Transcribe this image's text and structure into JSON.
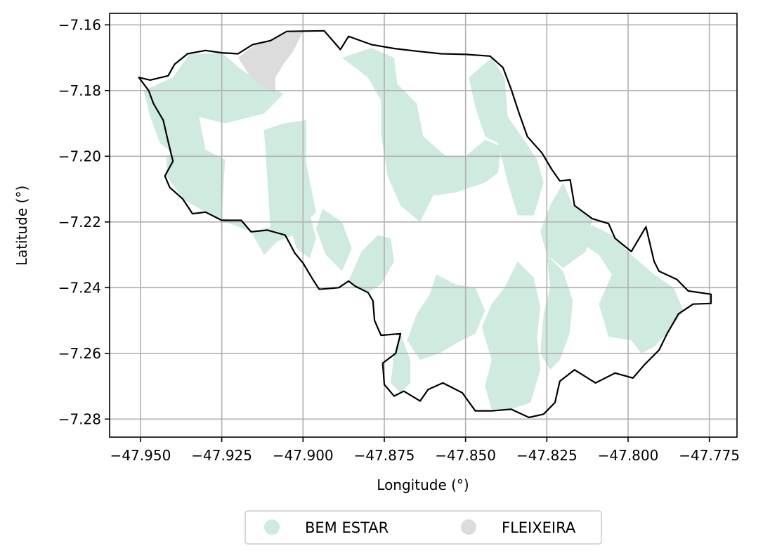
{
  "chart_data": {
    "type": "map",
    "title": "",
    "xlabel": "Longitude (°)",
    "ylabel": "Latitude (°)",
    "xlim": [
      -47.9595,
      -47.7665
    ],
    "ylim": [
      -7.2855,
      -7.1565
    ],
    "x_ticks": [
      -47.95,
      -47.925,
      -47.9,
      -47.875,
      -47.85,
      -47.825,
      -47.8,
      -47.775
    ],
    "y_ticks": [
      -7.16,
      -7.18,
      -7.2,
      -7.22,
      -7.24,
      -7.26,
      -7.28
    ],
    "x_tick_labels": [
      "−47.950",
      "−47.925",
      "−47.900",
      "−47.875",
      "−47.850",
      "−47.825",
      "−47.800",
      "−47.775"
    ],
    "y_tick_labels": [
      "−7.16",
      "−7.18",
      "−7.20",
      "−7.22",
      "−7.24",
      "−7.26",
      "−7.28"
    ],
    "grid": true,
    "legend_placement": "bottom-center",
    "colors": {
      "bem_estar": "#cfeadf",
      "fleixeira": "#dcdcdc",
      "boundary": "#000000",
      "grid": "#b0b0b0"
    },
    "legend": [
      {
        "label": "BEM ESTAR",
        "color": "#cfeadf"
      },
      {
        "label": "FLEIXEIRA",
        "color": "#dcdcdc"
      }
    ],
    "boundary": [
      [
        -47.9505,
        -7.176
      ],
      [
        -47.947,
        -7.1768
      ],
      [
        -47.9415,
        -7.1755
      ],
      [
        -47.9395,
        -7.172
      ],
      [
        -47.9355,
        -7.1688
      ],
      [
        -47.93,
        -7.1678
      ],
      [
        -47.925,
        -7.1685
      ],
      [
        -47.92,
        -7.1688
      ],
      [
        -47.9155,
        -7.166
      ],
      [
        -47.91,
        -7.1648
      ],
      [
        -47.905,
        -7.162
      ],
      [
        -47.8935,
        -7.1618
      ],
      [
        -47.8885,
        -7.1675
      ],
      [
        -47.886,
        -7.1635
      ],
      [
        -47.879,
        -7.166
      ],
      [
        -47.872,
        -7.1672
      ],
      [
        -47.865,
        -7.168
      ],
      [
        -47.8575,
        -7.1688
      ],
      [
        -47.85,
        -7.169
      ],
      [
        -47.8425,
        -7.1695
      ],
      [
        -47.8385,
        -7.173
      ],
      [
        -47.836,
        -7.1795
      ],
      [
        -47.8335,
        -7.187
      ],
      [
        -47.831,
        -7.194
      ],
      [
        -47.8265,
        -7.199
      ],
      [
        -47.8235,
        -7.204
      ],
      [
        -47.821,
        -7.2075
      ],
      [
        -47.8178,
        -7.2072
      ],
      [
        -47.8165,
        -7.215
      ],
      [
        -47.811,
        -7.219
      ],
      [
        -47.806,
        -7.2205
      ],
      [
        -47.804,
        -7.225
      ],
      [
        -47.799,
        -7.229
      ],
      [
        -47.7945,
        -7.2215
      ],
      [
        -47.792,
        -7.232
      ],
      [
        -47.7905,
        -7.235
      ],
      [
        -47.785,
        -7.2375
      ],
      [
        -47.7815,
        -7.241
      ],
      [
        -47.7745,
        -7.242
      ],
      [
        -47.7745,
        -7.2448
      ],
      [
        -47.78,
        -7.245
      ],
      [
        -47.7845,
        -7.248
      ],
      [
        -47.788,
        -7.254
      ],
      [
        -47.7905,
        -7.259
      ],
      [
        -47.795,
        -7.2635
      ],
      [
        -47.7985,
        -7.2675
      ],
      [
        -47.804,
        -7.266
      ],
      [
        -47.81,
        -7.269
      ],
      [
        -47.8165,
        -7.265
      ],
      [
        -47.821,
        -7.2685
      ],
      [
        -47.8225,
        -7.275
      ],
      [
        -47.826,
        -7.2785
      ],
      [
        -47.8305,
        -7.2795
      ],
      [
        -47.836,
        -7.277
      ],
      [
        -47.842,
        -7.2775
      ],
      [
        -47.847,
        -7.2775
      ],
      [
        -47.851,
        -7.272
      ],
      [
        -47.857,
        -7.269
      ],
      [
        -47.8615,
        -7.271
      ],
      [
        -47.864,
        -7.2745
      ],
      [
        -47.869,
        -7.2715
      ],
      [
        -47.872,
        -7.273
      ],
      [
        -47.875,
        -7.2695
      ],
      [
        -47.8755,
        -7.263
      ],
      [
        -47.8715,
        -7.26
      ],
      [
        -47.87,
        -7.254
      ],
      [
        -47.876,
        -7.2545
      ],
      [
        -47.878,
        -7.25
      ],
      [
        -47.8785,
        -7.244
      ],
      [
        -47.88,
        -7.2415
      ],
      [
        -47.884,
        -7.2395
      ],
      [
        -47.886,
        -7.238
      ],
      [
        -47.889,
        -7.24
      ],
      [
        -47.895,
        -7.2405
      ],
      [
        -47.897,
        -7.2375
      ],
      [
        -47.9,
        -7.2325
      ],
      [
        -47.9025,
        -7.2295
      ],
      [
        -47.9055,
        -7.224
      ],
      [
        -47.911,
        -7.2225
      ],
      [
        -47.916,
        -7.223
      ],
      [
        -47.919,
        -7.2195
      ],
      [
        -47.925,
        -7.2195
      ],
      [
        -47.93,
        -7.217
      ],
      [
        -47.934,
        -7.2175
      ],
      [
        -47.937,
        -7.213
      ],
      [
        -47.941,
        -7.2095
      ],
      [
        -47.9425,
        -7.206
      ],
      [
        -47.94,
        -7.2015
      ],
      [
        -47.9415,
        -7.1955
      ],
      [
        -47.943,
        -7.189
      ],
      [
        -47.946,
        -7.184
      ],
      [
        -47.9475,
        -7.18
      ],
      [
        -47.9505,
        -7.176
      ]
    ],
    "regions": [
      {
        "name": "BEM ESTAR",
        "polygons": [
          [
            [
              -47.949,
              -7.18
            ],
            [
              -47.94,
              -7.176
            ],
            [
              -47.935,
              -7.169
            ],
            [
              -47.925,
              -7.1685
            ],
            [
              -47.9185,
              -7.174
            ],
            [
              -47.91,
              -7.179
            ],
            [
              -47.906,
              -7.181
            ],
            [
              -47.912,
              -7.187
            ],
            [
              -47.924,
              -7.19
            ],
            [
              -47.932,
              -7.188
            ],
            [
              -47.94,
              -7.199
            ],
            [
              -47.944,
              -7.196
            ],
            [
              -47.947,
              -7.188
            ]
          ],
          [
            [
              -47.94,
              -7.199
            ],
            [
              -47.932,
              -7.188
            ],
            [
              -47.93,
              -7.198
            ],
            [
              -47.924,
              -7.201
            ],
            [
              -47.925,
              -7.219
            ],
            [
              -47.919,
              -7.2195
            ],
            [
              -47.916,
              -7.223
            ],
            [
              -47.91,
              -7.2215
            ],
            [
              -47.912,
              -7.192
            ],
            [
              -47.906,
              -7.19
            ],
            [
              -47.899,
              -7.189
            ],
            [
              -47.899,
              -7.202
            ],
            [
              -47.896,
              -7.217
            ],
            [
              -47.903,
              -7.224
            ],
            [
              -47.908,
              -7.226
            ],
            [
              -47.912,
              -7.23
            ],
            [
              -47.916,
              -7.223
            ],
            [
              -47.925,
              -7.2195
            ],
            [
              -47.93,
              -7.217
            ],
            [
              -47.937,
              -7.213
            ],
            [
              -47.942,
              -7.206
            ],
            [
              -47.942,
              -7.2
            ]
          ],
          [
            [
              -47.888,
              -7.17
            ],
            [
              -47.879,
              -7.167
            ],
            [
              -47.872,
              -7.17
            ],
            [
              -47.871,
              -7.178
            ],
            [
              -47.865,
              -7.184
            ],
            [
              -47.863,
              -7.194
            ],
            [
              -47.856,
              -7.2
            ],
            [
              -47.85,
              -7.2
            ],
            [
              -47.844,
              -7.195
            ],
            [
              -47.839,
              -7.197
            ],
            [
              -47.84,
              -7.205
            ],
            [
              -47.844,
              -7.208
            ],
            [
              -47.853,
              -7.211
            ],
            [
              -47.86,
              -7.212
            ],
            [
              -47.864,
              -7.22
            ],
            [
              -47.87,
              -7.215
            ],
            [
              -47.874,
              -7.206
            ],
            [
              -47.876,
              -7.193
            ],
            [
              -47.876,
              -7.183
            ],
            [
              -47.88,
              -7.176
            ]
          ],
          [
            [
              -47.842,
              -7.17
            ],
            [
              -47.838,
              -7.176
            ],
            [
              -47.837,
              -7.188
            ],
            [
              -47.832,
              -7.195
            ],
            [
              -47.828,
              -7.201
            ],
            [
              -47.826,
              -7.208
            ],
            [
              -47.829,
              -7.218
            ],
            [
              -47.834,
              -7.218
            ],
            [
              -47.837,
              -7.208
            ],
            [
              -47.84,
              -7.196
            ],
            [
              -47.844,
              -7.194
            ],
            [
              -47.847,
              -7.185
            ],
            [
              -47.849,
              -7.176
            ]
          ],
          [
            [
              -47.82,
              -7.208
            ],
            [
              -47.817,
              -7.215
            ],
            [
              -47.811,
              -7.219
            ],
            [
              -47.813,
              -7.229
            ],
            [
              -47.82,
              -7.234
            ],
            [
              -47.825,
              -7.23
            ],
            [
              -47.827,
              -7.223
            ],
            [
              -47.824,
              -7.215
            ]
          ],
          [
            [
              -47.815,
              -7.226
            ],
            [
              -47.809,
              -7.23
            ],
            [
              -47.805,
              -7.236
            ],
            [
              -47.809,
              -7.245
            ],
            [
              -47.806,
              -7.255
            ],
            [
              -47.799,
              -7.256
            ],
            [
              -47.796,
              -7.26
            ],
            [
              -47.792,
              -7.258
            ],
            [
              -47.788,
              -7.254
            ],
            [
              -47.783,
              -7.247
            ],
            [
              -47.786,
              -7.24
            ],
            [
              -47.792,
              -7.236
            ],
            [
              -47.799,
              -7.23
            ],
            [
              -47.805,
              -7.224
            ],
            [
              -47.811,
              -7.221
            ]
          ],
          [
            [
              -47.834,
              -7.232
            ],
            [
              -47.829,
              -7.237
            ],
            [
              -47.827,
              -7.246
            ],
            [
              -47.828,
              -7.255
            ],
            [
              -47.827,
              -7.265
            ],
            [
              -47.83,
              -7.275
            ],
            [
              -47.836,
              -7.277
            ],
            [
              -47.842,
              -7.277
            ],
            [
              -47.844,
              -7.27
            ],
            [
              -47.842,
              -7.262
            ],
            [
              -47.845,
              -7.252
            ],
            [
              -47.842,
              -7.245
            ],
            [
              -47.838,
              -7.24
            ]
          ],
          [
            [
              -47.825,
              -7.23
            ],
            [
              -47.82,
              -7.235
            ],
            [
              -47.817,
              -7.244
            ],
            [
              -47.818,
              -7.254
            ],
            [
              -47.821,
              -7.262
            ],
            [
              -47.824,
              -7.265
            ],
            [
              -47.827,
              -7.26
            ],
            [
              -47.826,
              -7.248
            ],
            [
              -47.824,
              -7.24
            ]
          ],
          [
            [
              -47.859,
              -7.236
            ],
            [
              -47.853,
              -7.239
            ],
            [
              -47.847,
              -7.24
            ],
            [
              -47.844,
              -7.247
            ],
            [
              -47.847,
              -7.254
            ],
            [
              -47.853,
              -7.257
            ],
            [
              -47.858,
              -7.26
            ],
            [
              -47.864,
              -7.262
            ],
            [
              -47.868,
              -7.256
            ],
            [
              -47.865,
              -7.248
            ],
            [
              -47.861,
              -7.242
            ]
          ],
          [
            [
              -47.886,
              -7.238
            ],
            [
              -47.882,
              -7.229
            ],
            [
              -47.877,
              -7.224
            ],
            [
              -47.873,
              -7.225
            ],
            [
              -47.872,
              -7.232
            ],
            [
              -47.876,
              -7.239
            ],
            [
              -47.88,
              -7.2415
            ]
          ],
          [
            [
              -47.87,
              -7.254
            ],
            [
              -47.867,
              -7.262
            ],
            [
              -47.867,
              -7.269
            ],
            [
              -47.87,
              -7.272
            ],
            [
              -47.873,
              -7.269
            ],
            [
              -47.872,
              -7.26
            ]
          ],
          [
            [
              -47.904,
              -7.207
            ],
            [
              -47.899,
              -7.213
            ],
            [
              -47.896,
              -7.225
            ],
            [
              -47.898,
              -7.231
            ],
            [
              -47.902,
              -7.228
            ],
            [
              -47.905,
              -7.218
            ]
          ],
          [
            [
              -47.894,
              -7.216
            ],
            [
              -47.888,
              -7.22
            ],
            [
              -47.885,
              -7.228
            ],
            [
              -47.888,
              -7.235
            ],
            [
              -47.893,
              -7.23
            ],
            [
              -47.896,
              -7.222
            ]
          ]
        ]
      },
      {
        "name": "FLEIXEIRA",
        "polygons": [
          [
            [
              -47.92,
              -7.17
            ],
            [
              -47.914,
              -7.1655
            ],
            [
              -47.909,
              -7.1645
            ],
            [
              -47.904,
              -7.162
            ],
            [
              -47.9,
              -7.162
            ],
            [
              -47.903,
              -7.168
            ],
            [
              -47.906,
              -7.172
            ],
            [
              -47.9085,
              -7.176
            ],
            [
              -47.9085,
              -7.181
            ],
            [
              -47.912,
              -7.179
            ],
            [
              -47.916,
              -7.176
            ]
          ]
        ]
      }
    ]
  }
}
